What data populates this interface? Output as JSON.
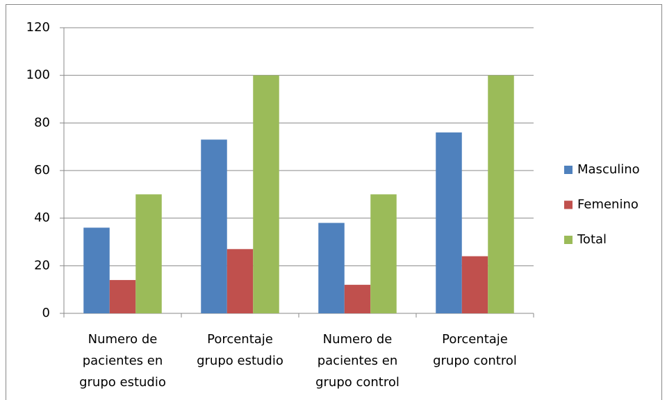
{
  "chart_data": {
    "type": "bar",
    "categories": [
      "Numero de pacientes en grupo estudio",
      "Porcentaje grupo estudio",
      "Numero de pacientes en grupo control",
      "Porcentaje grupo control"
    ],
    "series": [
      {
        "name": "Masculino",
        "color": "#4f81bd",
        "values": [
          36,
          73,
          38,
          76
        ]
      },
      {
        "name": "Femenino",
        "color": "#c0504d",
        "values": [
          14,
          27,
          12,
          24
        ]
      },
      {
        "name": "Total",
        "color": "#9bbb59",
        "values": [
          50,
          100,
          50,
          100
        ]
      }
    ],
    "ylim": [
      0,
      120
    ],
    "yticks": [
      0,
      20,
      40,
      60,
      80,
      100,
      120
    ],
    "grid": true,
    "legend": "right"
  }
}
